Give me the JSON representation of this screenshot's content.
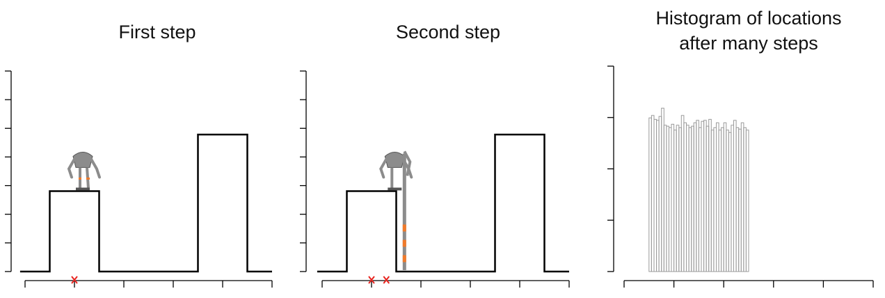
{
  "panels": [
    {
      "title": "First step"
    },
    {
      "title": "Second step"
    },
    {
      "title": "Histogram of locations\nafter many steps"
    }
  ],
  "colors": {
    "line": "#000000",
    "marker": "#e8231e",
    "hist_bar": "#9a9a9a",
    "robot_body": "#8c8c8c",
    "robot_stripe": "#f07a2a"
  },
  "chart_data": [
    {
      "type": "line",
      "title": "First step",
      "xlim": [
        0,
        5
      ],
      "ylim": [
        0,
        9.5
      ],
      "grid": false,
      "density_x": [
        -0.1,
        0.5,
        0.5,
        1.5,
        1.5,
        3.5,
        3.5,
        4.5,
        4.5,
        5.0
      ],
      "density_y": [
        0,
        0,
        3.7,
        3.7,
        0,
        0,
        6.3,
        6.3,
        0,
        0
      ],
      "markers": [
        {
          "x": 1.0,
          "symbol": "x"
        }
      ],
      "robot": {
        "x": 1.0,
        "pose": "standing"
      }
    },
    {
      "type": "line",
      "title": "Second step",
      "xlim": [
        0,
        5
      ],
      "ylim": [
        0,
        9.5
      ],
      "grid": false,
      "density_x": [
        -0.1,
        0.5,
        0.5,
        1.5,
        1.5,
        3.5,
        3.5,
        4.5,
        4.5,
        5.0
      ],
      "density_y": [
        0,
        0,
        3.7,
        3.7,
        0,
        0,
        6.3,
        6.3,
        0,
        0
      ],
      "markers": [
        {
          "x": 1.0,
          "symbol": "x"
        },
        {
          "x": 1.3,
          "symbol": "x"
        }
      ],
      "robot": {
        "x": 1.3,
        "pose": "stretched"
      }
    },
    {
      "type": "bar",
      "title": "Histogram of locations\nafter many steps",
      "xlim": [
        0,
        5
      ],
      "ylim": [
        0,
        4
      ],
      "grid": false,
      "bin_width": 0.05,
      "bins_start": 0.5,
      "values": [
        3.15,
        3.2,
        3.12,
        3.1,
        3.18,
        3.35,
        3.0,
        2.98,
        2.95,
        3.02,
        2.9,
        3.0,
        2.95,
        3.2,
        3.05,
        3.0,
        2.95,
        2.98,
        3.05,
        3.1,
        2.95,
        3.08,
        3.1,
        2.98,
        3.12,
        2.9,
        2.95,
        3.05,
        2.9,
        2.95,
        3.05,
        2.9,
        2.85,
        3.0,
        3.1,
        2.95,
        2.92,
        3.05,
        2.95,
        2.9
      ]
    }
  ]
}
